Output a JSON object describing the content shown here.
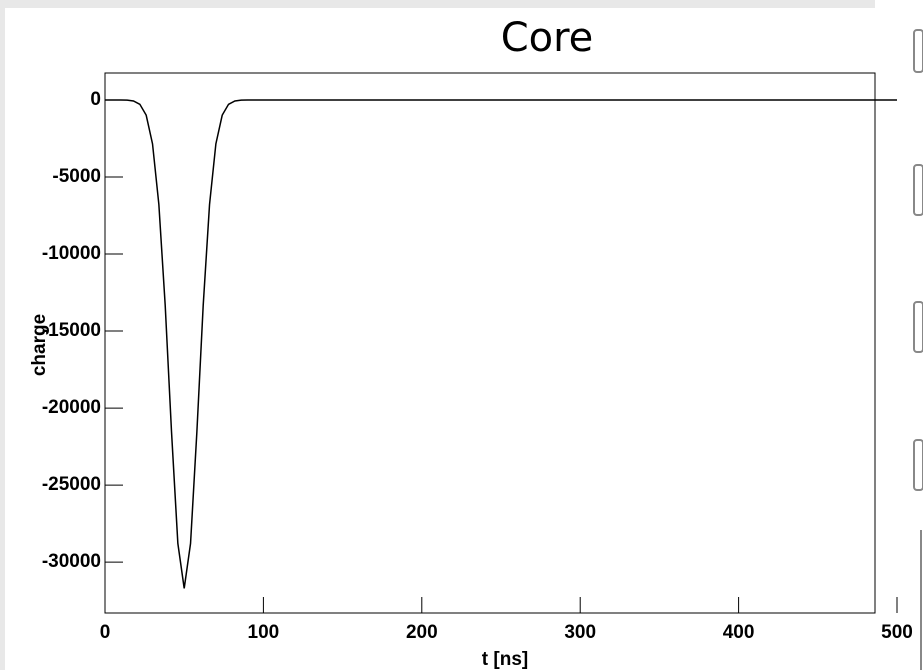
{
  "chart_data": {
    "type": "line",
    "title": "Core",
    "x_label": "t [ns]",
    "y_label": "charge",
    "x": [
      0,
      10,
      14,
      18,
      22,
      26,
      30,
      34,
      38,
      42,
      46,
      50,
      54,
      58,
      62,
      66,
      70,
      74,
      78,
      82,
      86,
      90,
      94,
      500
    ],
    "series": [
      {
        "name": "charge",
        "color": "#000000",
        "values": [
          0,
          -2,
          -13,
          -66,
          -282,
          -987,
          -2847,
          -6780,
          -13320,
          -21550,
          -28790,
          -31700,
          -28790,
          -21550,
          -13320,
          -6780,
          -2847,
          -987,
          -282,
          -66,
          -13,
          -2,
          0,
          0
        ]
      }
    ],
    "xlim": [
      0,
      500
    ],
    "ylim": [
      -33300,
      1750
    ],
    "xticks": [
      0,
      100,
      200,
      300,
      400,
      500
    ],
    "yticks": [
      0,
      -5000,
      -10000,
      -15000,
      -20000,
      -25000,
      -30000
    ]
  }
}
